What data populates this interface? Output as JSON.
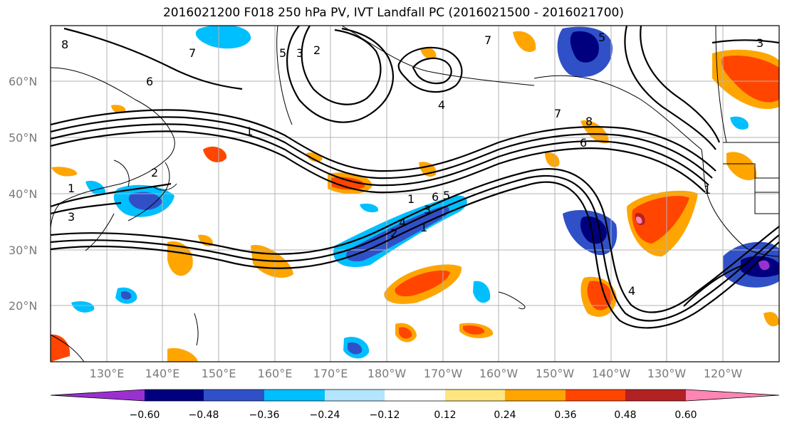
{
  "title": "2016021200 F018 250 hPa PV, IVT Landfall PC (2016021500 - 2016021700)",
  "lat_labels": [
    "60°N",
    "50°N",
    "40°N",
    "30°N",
    "20°N"
  ],
  "lon_labels": [
    "130°E",
    "140°E",
    "150°E",
    "160°E",
    "170°E",
    "180°W",
    "170°W",
    "160°W",
    "150°W",
    "140°W",
    "130°W",
    "120°W"
  ],
  "colorbar": {
    "ticks": [
      "−0.60",
      "−0.48",
      "−0.36",
      "−0.24",
      "−0.12",
      "0.12",
      "0.24",
      "0.36",
      "0.48",
      "0.60"
    ],
    "colors": [
      "#9b30d0",
      "#00007f",
      "#3050c8",
      "#00bfff",
      "#b3e5ff",
      "#ffffff",
      "#ffe680",
      "#ffa500",
      "#ff4500",
      "#b22222",
      "#ff85b5"
    ]
  },
  "contour_labels": [
    "8",
    "7",
    "6",
    "5",
    "3",
    "2",
    "1",
    "3",
    "2",
    "1",
    "4",
    "7",
    "8",
    "6",
    "7",
    "6",
    "5",
    "1",
    "4",
    "2",
    "1",
    "3",
    "1",
    "4",
    "5",
    "3"
  ]
}
